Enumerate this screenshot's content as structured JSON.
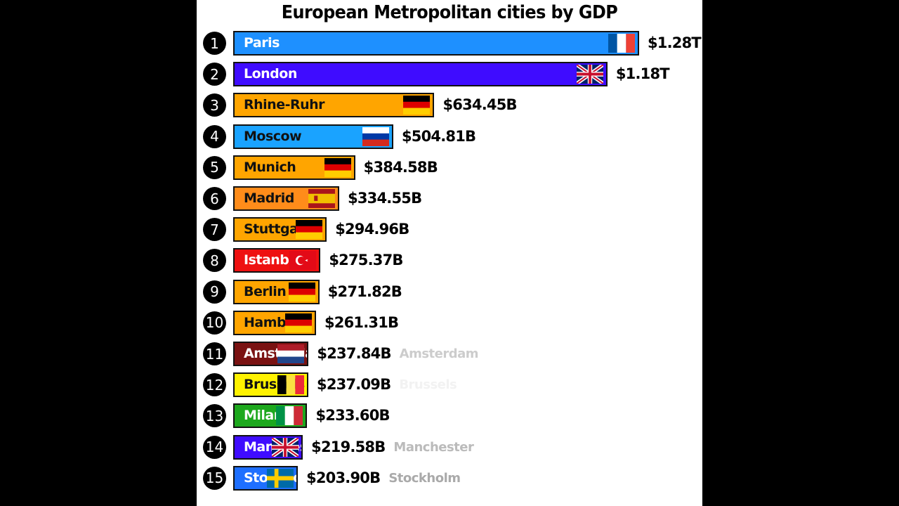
{
  "chart_data": {
    "type": "bar",
    "orientation": "horizontal",
    "title": "European Metropolitan cities by GDP",
    "value_unit": "USD",
    "ranks": [
      "1",
      "2",
      "3",
      "4",
      "5",
      "6",
      "7",
      "8",
      "9",
      "10",
      "11",
      "12",
      "13",
      "14",
      "15"
    ],
    "rows": [
      {
        "label": "Paris",
        "value": 1280,
        "value_label": "$1.28T",
        "color": "#1E90FF",
        "text_color": "#ffffff",
        "flag": "france",
        "trailing_label": ""
      },
      {
        "label": "London",
        "value": 1180,
        "value_label": "$1.18T",
        "color": "#3F0CFF",
        "text_color": "#ffffff",
        "flag": "uk",
        "trailing_label": ""
      },
      {
        "label": "Rhine-Ruhr",
        "value": 634.45,
        "value_label": "$634.45B",
        "color": "#FFA500",
        "text_color": "#111111",
        "flag": "germany",
        "trailing_label": ""
      },
      {
        "label": "Moscow",
        "value": 504.81,
        "value_label": "$504.81B",
        "color": "#1AA3FF",
        "text_color": "#111111",
        "flag": "russia",
        "trailing_label": ""
      },
      {
        "label": "Munich",
        "value": 384.58,
        "value_label": "$384.58B",
        "color": "#FFA500",
        "text_color": "#111111",
        "flag": "germany",
        "trailing_label": ""
      },
      {
        "label": "Madrid",
        "value": 334.55,
        "value_label": "$334.55B",
        "color": "#FF8C1A",
        "text_color": "#111111",
        "flag": "spain",
        "trailing_label": ""
      },
      {
        "label": "Stuttgart",
        "value": 294.96,
        "value_label": "$294.96B",
        "color": "#FFA500",
        "text_color": "#111111",
        "flag": "germany",
        "trailing_label": ""
      },
      {
        "label": "Istanbul",
        "value": 275.37,
        "value_label": "$275.37B",
        "color": "#EE1111",
        "text_color": "#ffffff",
        "flag": "turkey",
        "trailing_label": ""
      },
      {
        "label": "Berlin",
        "value": 271.82,
        "value_label": "$271.82B",
        "color": "#FFA500",
        "text_color": "#111111",
        "flag": "germany",
        "trailing_label": ""
      },
      {
        "label": "Hamburg",
        "value": 261.31,
        "value_label": "$261.31B",
        "color": "#FFA500",
        "text_color": "#111111",
        "flag": "germany",
        "trailing_label": ""
      },
      {
        "label": "Amsterdam",
        "value": 237.84,
        "value_label": "$237.84B",
        "color": "#7A1212",
        "text_color": "#ffffff",
        "flag": "netherlands",
        "trailing_label": "Amsterdam"
      },
      {
        "label": "Brussels",
        "value": 237.09,
        "value_label": "$237.09B",
        "color": "#FFF200",
        "text_color": "#111111",
        "flag": "belgium",
        "trailing_label": "Brussels"
      },
      {
        "label": "Milan",
        "value": 233.6,
        "value_label": "$233.60B",
        "color": "#1DA81D",
        "text_color": "#ffffff",
        "flag": "italy",
        "trailing_label": ""
      },
      {
        "label": "Manchester",
        "value": 219.58,
        "value_label": "$219.58B",
        "color": "#3F0CFF",
        "text_color": "#ffffff",
        "flag": "uk",
        "trailing_label": "Manchester"
      },
      {
        "label": "Stockholm",
        "value": 203.9,
        "value_label": "$203.90B",
        "color": "#1E6FFF",
        "text_color": "#ffffff",
        "flag": "sweden",
        "trailing_label": "Stockholm"
      }
    ],
    "trailing_label_colors": [
      "#cccccc",
      "#f2f2f2",
      "#bbbbbb",
      "#aaaaaa"
    ],
    "grid": false,
    "legend": "none"
  }
}
